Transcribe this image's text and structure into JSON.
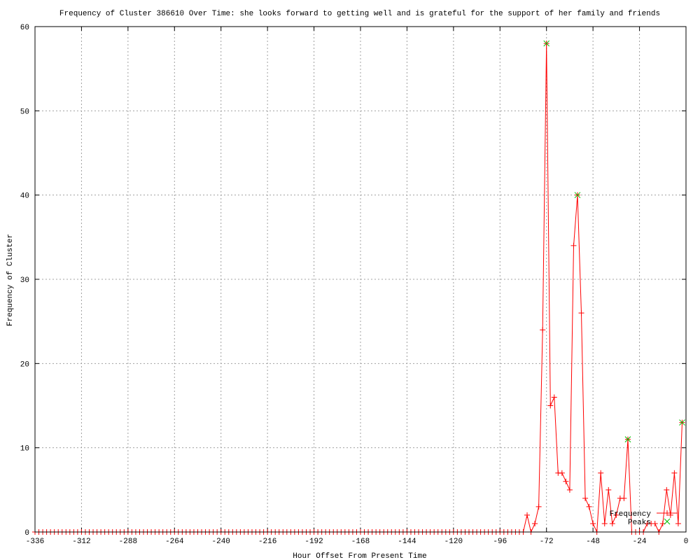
{
  "chart_data": {
    "type": "line",
    "title": "Frequency of Cluster 386610 Over Time: she looks forward to getting well and is grateful for the support of her family and friends",
    "xlabel": "Hour Offset From Present Time",
    "ylabel": "Frequency of Cluster",
    "xlim": [
      -336,
      0
    ],
    "ylim": [
      0,
      60
    ],
    "xticks": [
      -336,
      -312,
      -288,
      -264,
      -240,
      -216,
      -192,
      -168,
      -144,
      -120,
      -96,
      -72,
      -48,
      -24,
      0
    ],
    "yticks": [
      0,
      10,
      20,
      30,
      40,
      50,
      60
    ],
    "grid": true,
    "legend_placement": "bottom-right",
    "series": [
      {
        "name": "Frequency",
        "color": "#ff0000",
        "marker": "plus",
        "x": [
          -336,
          -334,
          -332,
          -330,
          -328,
          -326,
          -324,
          -322,
          -320,
          -318,
          -316,
          -314,
          -312,
          -310,
          -308,
          -306,
          -304,
          -302,
          -300,
          -298,
          -296,
          -294,
          -292,
          -290,
          -288,
          -286,
          -284,
          -282,
          -280,
          -278,
          -276,
          -274,
          -272,
          -270,
          -268,
          -266,
          -264,
          -262,
          -260,
          -258,
          -256,
          -254,
          -252,
          -250,
          -248,
          -246,
          -244,
          -242,
          -240,
          -238,
          -236,
          -234,
          -232,
          -230,
          -228,
          -226,
          -224,
          -222,
          -220,
          -218,
          -216,
          -214,
          -212,
          -210,
          -208,
          -206,
          -204,
          -202,
          -200,
          -198,
          -196,
          -194,
          -192,
          -190,
          -188,
          -186,
          -184,
          -182,
          -180,
          -178,
          -176,
          -174,
          -172,
          -170,
          -168,
          -166,
          -164,
          -162,
          -160,
          -158,
          -156,
          -154,
          -152,
          -150,
          -148,
          -146,
          -144,
          -142,
          -140,
          -138,
          -136,
          -134,
          -132,
          -130,
          -128,
          -126,
          -124,
          -122,
          -120,
          -118,
          -116,
          -114,
          -112,
          -110,
          -108,
          -106,
          -104,
          -102,
          -100,
          -98,
          -96,
          -94,
          -92,
          -90,
          -88,
          -86,
          -84,
          -82,
          -80,
          -78,
          -76,
          -74,
          -72,
          -70,
          -68,
          -66,
          -64,
          -62,
          -60,
          -58,
          -56,
          -54,
          -52,
          -50,
          -48,
          -46,
          -44,
          -42,
          -40,
          -38,
          -36,
          -34,
          -32,
          -30,
          -28,
          -26,
          -24,
          -22,
          -20,
          -18,
          -16,
          -14,
          -12,
          -10,
          -8,
          -6,
          -4,
          -2
        ],
        "y": [
          0,
          0,
          0,
          0,
          0,
          0,
          0,
          0,
          0,
          0,
          0,
          0,
          0,
          0,
          0,
          0,
          0,
          0,
          0,
          0,
          0,
          0,
          0,
          0,
          0,
          0,
          0,
          0,
          0,
          0,
          0,
          0,
          0,
          0,
          0,
          0,
          0,
          0,
          0,
          0,
          0,
          0,
          0,
          0,
          0,
          0,
          0,
          0,
          0,
          0,
          0,
          0,
          0,
          0,
          0,
          0,
          0,
          0,
          0,
          0,
          0,
          0,
          0,
          0,
          0,
          0,
          0,
          0,
          0,
          0,
          0,
          0,
          0,
          0,
          0,
          0,
          0,
          0,
          0,
          0,
          0,
          0,
          0,
          0,
          0,
          0,
          0,
          0,
          0,
          0,
          0,
          0,
          0,
          0,
          0,
          0,
          0,
          0,
          0,
          0,
          0,
          0,
          0,
          0,
          0,
          0,
          0,
          0,
          0,
          0,
          0,
          0,
          0,
          0,
          0,
          0,
          0,
          0,
          0,
          0,
          0,
          0,
          0,
          0,
          0,
          0,
          0,
          2,
          0,
          1,
          3,
          24,
          58,
          15,
          16,
          7,
          7,
          6,
          5,
          34,
          40,
          26,
          4,
          3,
          1,
          0,
          7,
          1,
          5,
          1,
          2,
          4,
          4,
          11,
          0,
          0,
          0,
          0,
          1,
          1,
          1,
          0,
          1,
          5,
          2,
          7,
          1,
          13
        ]
      },
      {
        "name": "Peaks",
        "color": "#00c000",
        "marker": "cross",
        "x": [
          -72,
          -56,
          -30,
          -2
        ],
        "y": [
          58,
          40,
          11,
          13
        ]
      }
    ]
  }
}
